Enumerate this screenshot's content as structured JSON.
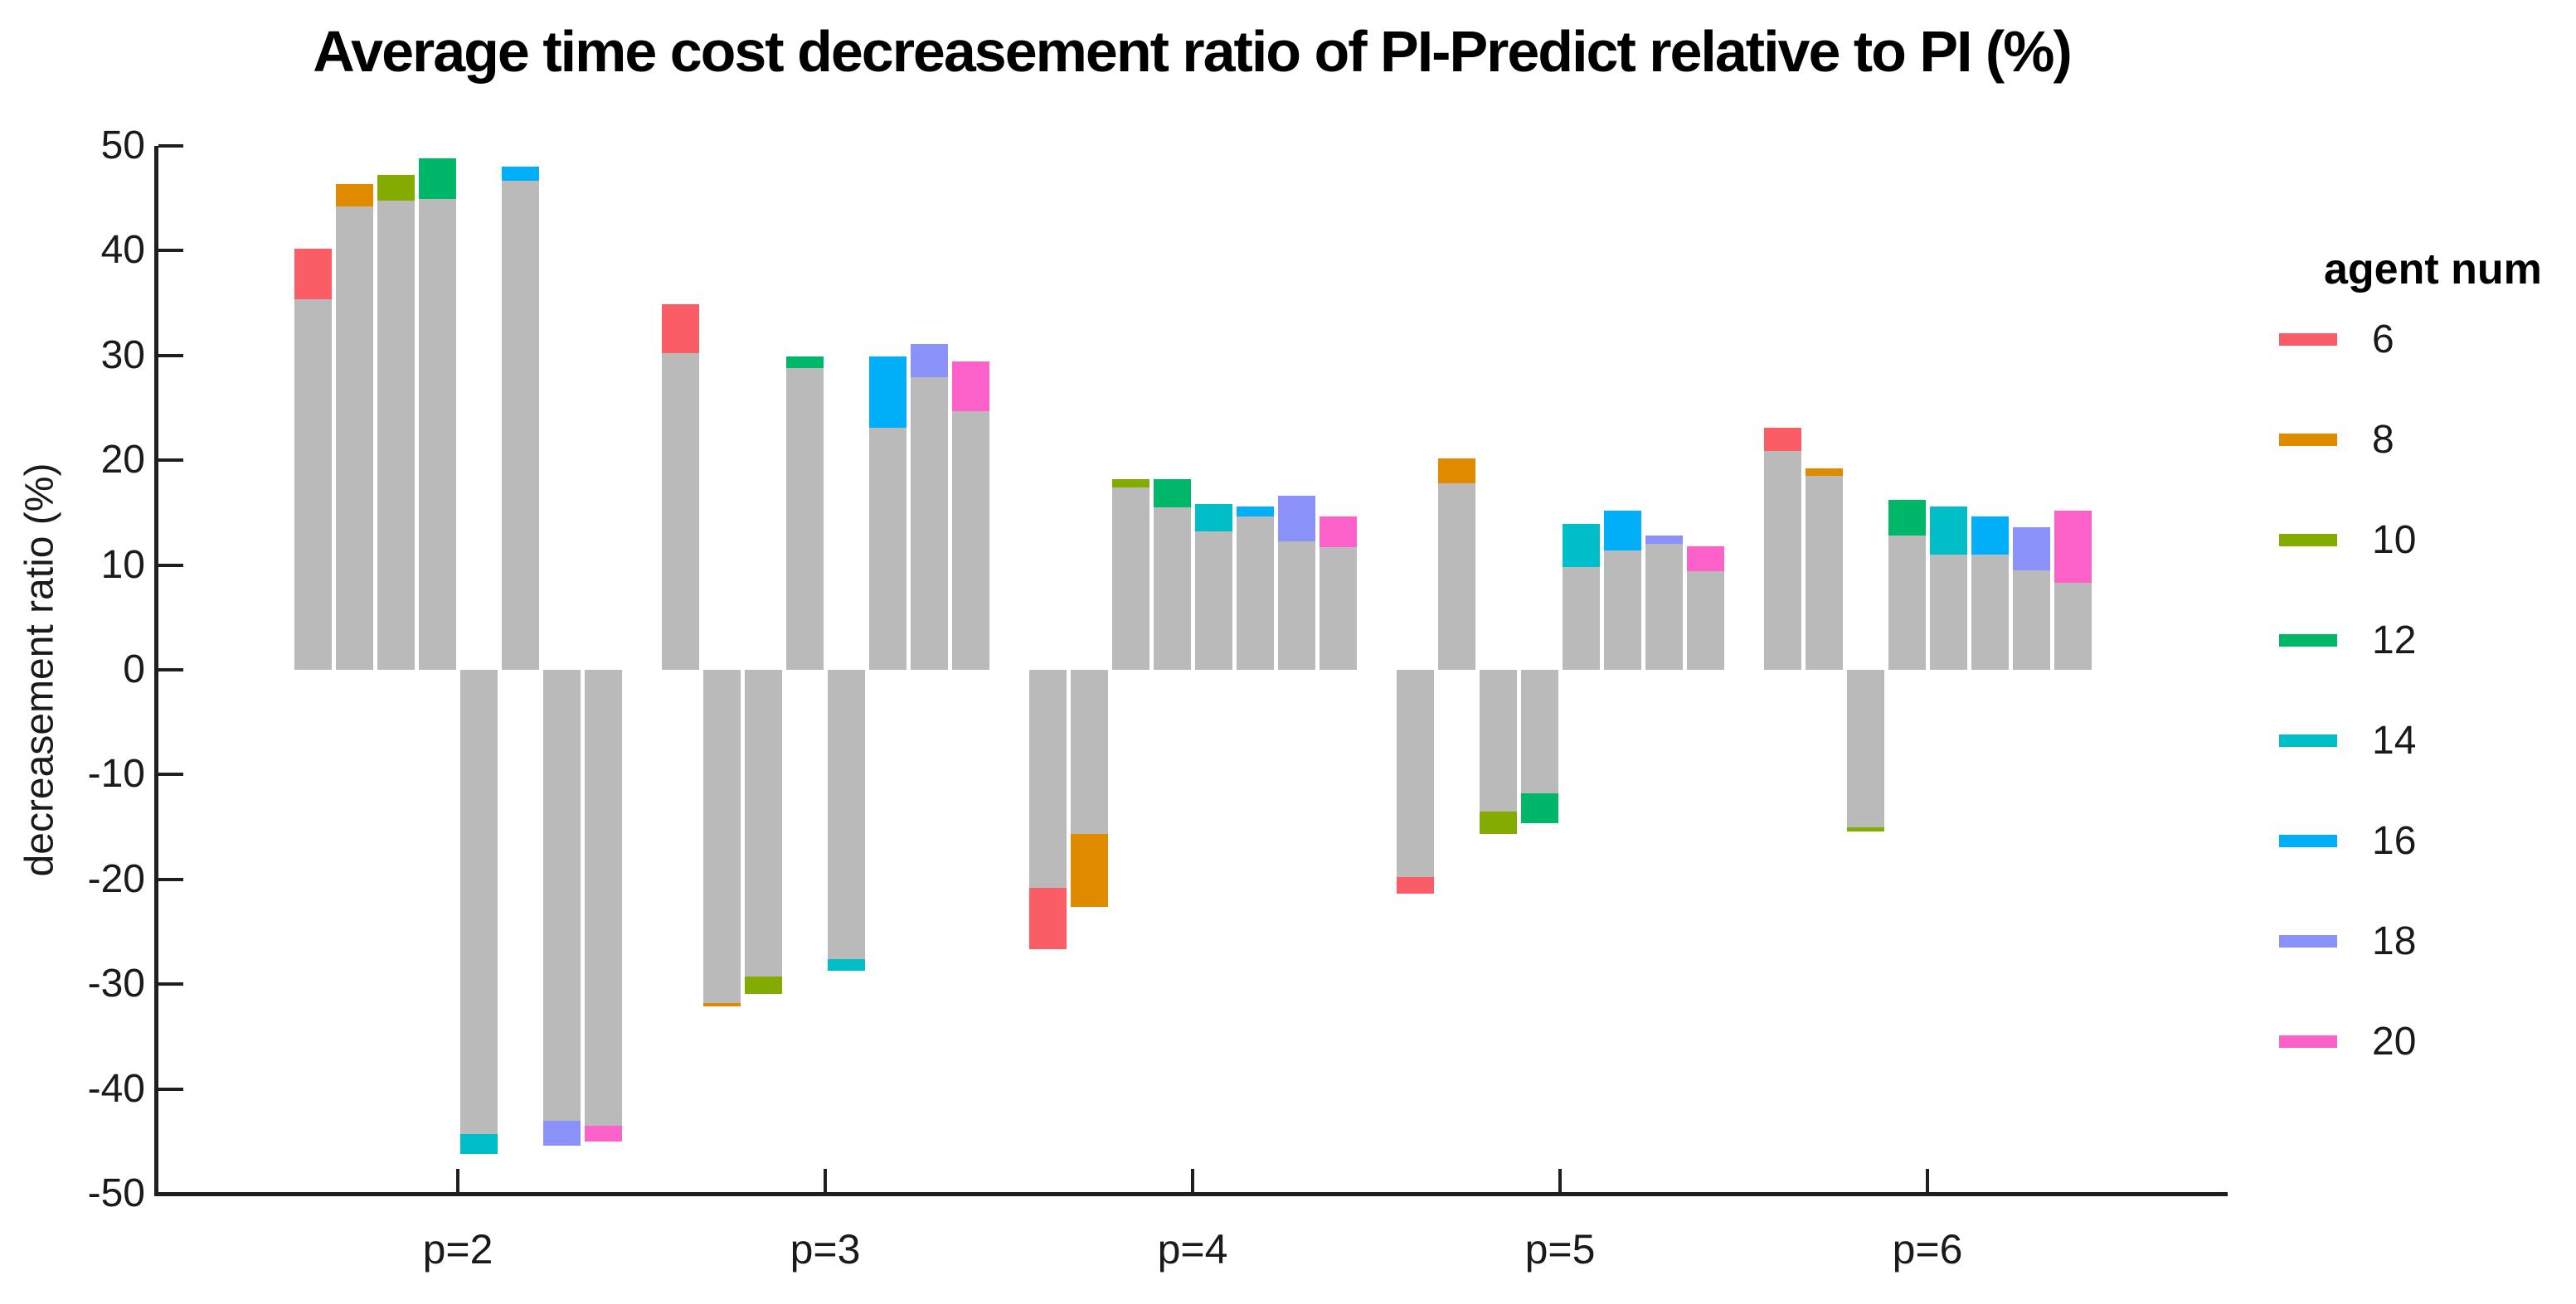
{
  "title": "Average time cost decreasement ratio of PI-Predict relative to PI (%)",
  "chart_data": {
    "type": "bar",
    "title": "Average time cost decreasement ratio of PI-Predict relative to PI (%)",
    "xlabel": "",
    "ylabel": "decreasement ratio (%)",
    "ylim": [
      -50,
      50
    ],
    "yticks": [
      50,
      40,
      30,
      20,
      10,
      0,
      -10,
      -20,
      -30,
      -40,
      -50
    ],
    "categories": [
      "p=2",
      "p=3",
      "p=4",
      "p=5",
      "p=6"
    ],
    "grid": "off",
    "legend_title": "agent num",
    "legend_position": "right",
    "bar_base_color": "#BABABA",
    "note": "Each bar: gray body from 0 to gray_boundary, colored tip from gray_boundary to total (per-group order: agents 6,8,10,12,14,16,18,20 left to right)",
    "series": [
      {
        "name": "6",
        "color": "#FB5D67",
        "totals": [
          40.2,
          34.9,
          -26.7,
          -21.4,
          23.1
        ],
        "gray_boundary": [
          35.4,
          30.2,
          -20.8,
          -19.8,
          20.9
        ]
      },
      {
        "name": "8",
        "color": "#E08A00",
        "totals": [
          46.4,
          -32.1,
          -22.6,
          20.2,
          19.2
        ],
        "gray_boundary": [
          44.2,
          -31.8,
          -15.7,
          17.8,
          18.5
        ]
      },
      {
        "name": "10",
        "color": "#84AB00",
        "totals": [
          47.2,
          -30.9,
          18.2,
          -15.7,
          -15.4
        ],
        "gray_boundary": [
          44.8,
          -29.3,
          17.4,
          -13.5,
          -15.0
        ]
      },
      {
        "name": "12",
        "color": "#00B669",
        "totals": [
          48.8,
          29.9,
          18.2,
          -14.6,
          16.2
        ],
        "gray_boundary": [
          44.9,
          28.8,
          15.5,
          -11.8,
          12.8
        ]
      },
      {
        "name": "14",
        "color": "#00BEC8",
        "totals": [
          -46.2,
          -28.7,
          15.8,
          13.9,
          15.6
        ],
        "gray_boundary": [
          -44.3,
          -27.6,
          13.2,
          9.8,
          11.0
        ]
      },
      {
        "name": "16",
        "color": "#00AFF8",
        "totals": [
          48.0,
          29.9,
          15.6,
          15.2,
          14.6
        ],
        "gray_boundary": [
          46.7,
          23.1,
          14.6,
          11.4,
          11.0
        ]
      },
      {
        "name": "18",
        "color": "#8A92F9",
        "totals": [
          -45.4,
          31.1,
          16.6,
          12.8,
          13.6
        ],
        "gray_boundary": [
          -43.0,
          27.9,
          12.3,
          12.0,
          9.5
        ]
      },
      {
        "name": "20",
        "color": "#FB61C8",
        "totals": [
          -45.0,
          29.4,
          14.6,
          11.8,
          15.2
        ],
        "gray_boundary": [
          -43.5,
          24.7,
          11.7,
          9.4,
          8.3
        ]
      }
    ]
  }
}
